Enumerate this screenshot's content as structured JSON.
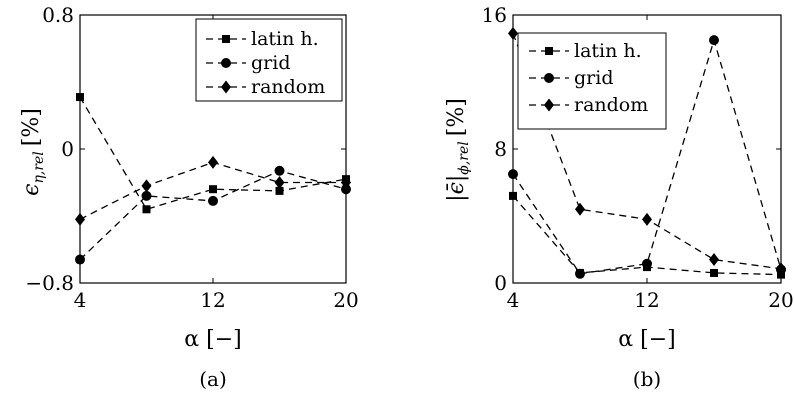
{
  "chart_data": [
    {
      "type": "line",
      "panel_label": "(a)",
      "xlabel": "α [−]",
      "ylabel_main": "ϵ",
      "ylabel_sub": "η,rel",
      "ylabel_unit": "[%]",
      "xlim": [
        4,
        20
      ],
      "ylim": [
        -0.8,
        0.8
      ],
      "xticks": [
        "4",
        "12",
        "20"
      ],
      "yticks": [
        "−0.8",
        "0",
        "0.8"
      ],
      "xtick_values": [
        4,
        12,
        20
      ],
      "ytick_values": [
        -0.8,
        0,
        0.8
      ],
      "x": [
        4,
        8,
        12,
        16,
        20
      ],
      "legend_position": "top-right",
      "series": [
        {
          "name": "latin h.",
          "marker": "square",
          "values": [
            0.31,
            -0.36,
            -0.24,
            -0.25,
            -0.18
          ]
        },
        {
          "name": "grid",
          "marker": "circle",
          "values": [
            -0.66,
            -0.28,
            -0.31,
            -0.13,
            -0.24
          ]
        },
        {
          "name": "random",
          "marker": "diamond",
          "values": [
            -0.42,
            -0.22,
            -0.08,
            -0.2,
            -0.2
          ]
        }
      ]
    },
    {
      "type": "line",
      "panel_label": "(b)",
      "xlabel": "α [−]",
      "ylabel_main": "|ϵ̄|",
      "ylabel_sub": "ϕ,rel",
      "ylabel_unit": "[%]",
      "xlim": [
        4,
        20
      ],
      "ylim": [
        0,
        16
      ],
      "xticks": [
        "4",
        "12",
        "20"
      ],
      "yticks": [
        "0",
        "8",
        "16"
      ],
      "xtick_values": [
        4,
        12,
        20
      ],
      "ytick_values": [
        0,
        8,
        16
      ],
      "x": [
        4,
        8,
        12,
        16,
        20
      ],
      "legend_position": "top-left",
      "series": [
        {
          "name": "latin h.",
          "marker": "square",
          "values": [
            5.2,
            0.6,
            0.95,
            0.6,
            0.5
          ]
        },
        {
          "name": "grid",
          "marker": "circle",
          "values": [
            6.5,
            0.55,
            1.15,
            14.5,
            0.8
          ]
        },
        {
          "name": "random",
          "marker": "diamond",
          "values": [
            14.9,
            4.4,
            3.8,
            1.4,
            0.85
          ]
        }
      ]
    }
  ]
}
